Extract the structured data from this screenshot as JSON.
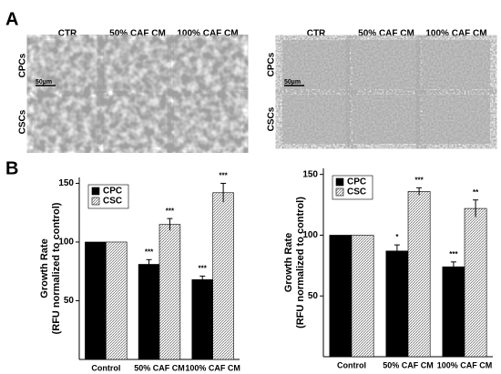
{
  "panel_a": {
    "label": "A",
    "groups": [
      {
        "columns": [
          "CTR",
          "50% CAF CM",
          "100% CAF CM"
        ],
        "rows": [
          "CPCs",
          "CSCs"
        ],
        "scale": "50µm"
      },
      {
        "columns": [
          "CTR",
          "50% CAF CM",
          "100% CAF CM"
        ],
        "rows": [
          "CPCs",
          "CSCs"
        ],
        "scale": "50µm"
      }
    ]
  },
  "panel_b": {
    "label": "B"
  },
  "chart_data": [
    {
      "type": "bar",
      "ylabel": [
        "Growth Rate",
        "(RFU normalized to control)"
      ],
      "categories": [
        "Control",
        "50% CAF CM",
        "100% CAF CM"
      ],
      "series": [
        {
          "name": "CPC",
          "color": "#000000",
          "values": [
            100,
            81,
            68
          ],
          "errors": [
            0,
            4,
            3
          ],
          "annotations": [
            null,
            "***",
            "***"
          ]
        },
        {
          "name": "CSC",
          "color": "#c8c8c8",
          "hatch": true,
          "values": [
            100,
            115,
            142
          ],
          "errors": [
            0,
            5,
            8
          ],
          "annotations": [
            null,
            "***",
            "***"
          ]
        }
      ],
      "ylim": [
        0,
        155
      ],
      "yticks": [
        50,
        100,
        150
      ],
      "legend": "upper left"
    },
    {
      "type": "bar",
      "ylabel": [
        "Growth Rate",
        "(RFU normalized to control)"
      ],
      "categories": [
        "Control",
        "50% CAF CM",
        "100% CAF CM"
      ],
      "series": [
        {
          "name": "CPC",
          "color": "#000000",
          "values": [
            100,
            87,
            74
          ],
          "errors": [
            0,
            5,
            4
          ],
          "annotations": [
            null,
            "*",
            "***"
          ]
        },
        {
          "name": "CSC",
          "color": "#c8c8c8",
          "hatch": true,
          "values": [
            100,
            136,
            122
          ],
          "errors": [
            0,
            3,
            7
          ],
          "annotations": [
            null,
            "***",
            "**"
          ]
        }
      ],
      "ylim": [
        0,
        155
      ],
      "yticks": [
        50,
        100,
        150
      ],
      "legend": "upper left"
    }
  ]
}
